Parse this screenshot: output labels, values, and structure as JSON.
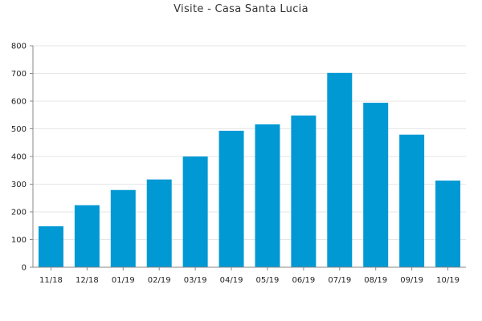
{
  "chart_data": {
    "type": "bar",
    "title": "Visite - Casa Santa Lucia",
    "xlabel": "",
    "ylabel": "",
    "categories": [
      "11/18",
      "12/18",
      "01/19",
      "02/19",
      "03/19",
      "04/19",
      "05/19",
      "06/19",
      "07/19",
      "08/19",
      "09/19",
      "10/19"
    ],
    "values": [
      148,
      224,
      279,
      317,
      400,
      493,
      516,
      548,
      702,
      594,
      479,
      313
    ],
    "ylim": [
      0,
      800
    ],
    "yticks": [
      0,
      100,
      200,
      300,
      400,
      500,
      600,
      700,
      800
    ],
    "grid": true,
    "legend": "none",
    "bar_color": "#0099d4",
    "grid_color": "#e6e6e6",
    "axis_color": "#888888"
  }
}
